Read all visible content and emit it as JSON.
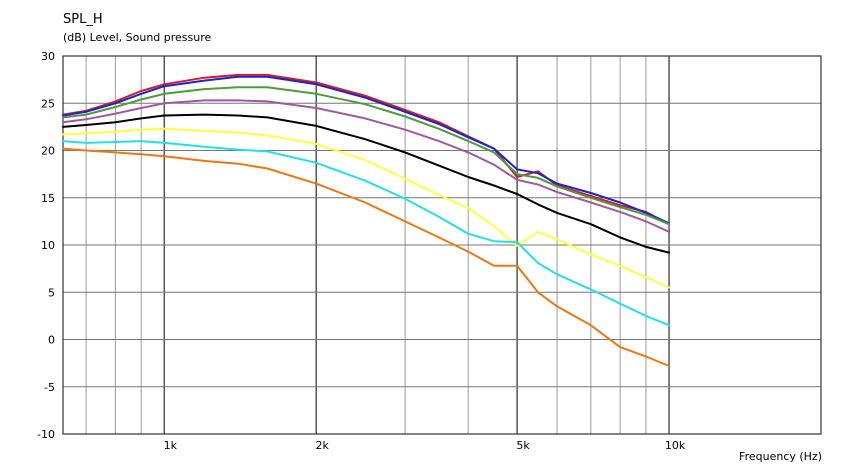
{
  "chart_data": {
    "type": "line",
    "title": "SPL_H",
    "ylabel": "(dB)  Level, Sound pressure",
    "xlabel": "Frequency  (Hz)",
    "x_scale": "log",
    "xlim": [
      630,
      20000
    ],
    "ylim": [
      -10,
      30
    ],
    "grid": true,
    "legend": "none",
    "y_ticks": [
      -10,
      -5,
      0,
      5,
      10,
      15,
      20,
      25,
      30
    ],
    "x_tick_labels": [
      {
        "value": 1000,
        "label": "1k"
      },
      {
        "value": 2000,
        "label": "2k"
      },
      {
        "value": 5000,
        "label": "5k"
      },
      {
        "value": 10000,
        "label": "10k"
      }
    ],
    "x_minor_grid": [
      700,
      800,
      900,
      3000,
      4000,
      6000,
      7000,
      8000,
      9000,
      20000
    ],
    "series": [
      {
        "color": "#cc2222",
        "points": [
          [
            630,
            23.8
          ],
          [
            700,
            24.2
          ],
          [
            800,
            25.2
          ],
          [
            900,
            26.3
          ],
          [
            1000,
            27.0
          ],
          [
            1200,
            27.7
          ],
          [
            1400,
            28.0
          ],
          [
            1600,
            28.0
          ],
          [
            2000,
            27.2
          ],
          [
            2500,
            25.8
          ],
          [
            3000,
            24.3
          ],
          [
            3500,
            23.0
          ],
          [
            4000,
            21.5
          ],
          [
            4500,
            20.2
          ],
          [
            5000,
            17.2
          ],
          [
            5500,
            17.8
          ],
          [
            6000,
            16.3
          ],
          [
            7000,
            15.2
          ],
          [
            8000,
            14.2
          ],
          [
            9000,
            13.5
          ],
          [
            10000,
            12.2
          ]
        ]
      },
      {
        "color": "#2222cc",
        "points": [
          [
            630,
            23.7
          ],
          [
            700,
            24.1
          ],
          [
            800,
            25.0
          ],
          [
            900,
            26.0
          ],
          [
            1000,
            26.8
          ],
          [
            1200,
            27.4
          ],
          [
            1400,
            27.8
          ],
          [
            1600,
            27.8
          ],
          [
            2000,
            27.0
          ],
          [
            2500,
            25.6
          ],
          [
            3000,
            24.1
          ],
          [
            3500,
            22.8
          ],
          [
            4000,
            21.4
          ],
          [
            4500,
            20.2
          ],
          [
            5000,
            18.0
          ],
          [
            5500,
            17.6
          ],
          [
            6000,
            16.5
          ],
          [
            7000,
            15.5
          ],
          [
            8000,
            14.5
          ],
          [
            9000,
            13.4
          ],
          [
            10000,
            12.3
          ]
        ]
      },
      {
        "color": "#4f9a3d",
        "points": [
          [
            630,
            23.5
          ],
          [
            700,
            23.8
          ],
          [
            800,
            24.6
          ],
          [
            900,
            25.4
          ],
          [
            1000,
            26.0
          ],
          [
            1200,
            26.5
          ],
          [
            1400,
            26.7
          ],
          [
            1600,
            26.7
          ],
          [
            2000,
            26.0
          ],
          [
            2500,
            24.9
          ],
          [
            3000,
            23.6
          ],
          [
            3500,
            22.3
          ],
          [
            4000,
            21.0
          ],
          [
            4500,
            19.8
          ],
          [
            5000,
            17.5
          ],
          [
            5500,
            17.1
          ],
          [
            6000,
            16.2
          ],
          [
            7000,
            15.0
          ],
          [
            8000,
            14.0
          ],
          [
            9000,
            13.2
          ],
          [
            10000,
            12.2
          ]
        ]
      },
      {
        "color": "#a05aa0",
        "points": [
          [
            630,
            23.0
          ],
          [
            700,
            23.3
          ],
          [
            800,
            23.9
          ],
          [
            900,
            24.5
          ],
          [
            1000,
            25.0
          ],
          [
            1200,
            25.3
          ],
          [
            1400,
            25.3
          ],
          [
            1600,
            25.2
          ],
          [
            2000,
            24.5
          ],
          [
            2500,
            23.4
          ],
          [
            3000,
            22.2
          ],
          [
            3500,
            21.0
          ],
          [
            4000,
            19.8
          ],
          [
            4500,
            18.5
          ],
          [
            5000,
            16.9
          ],
          [
            5500,
            16.4
          ],
          [
            6000,
            15.6
          ],
          [
            7000,
            14.5
          ],
          [
            8000,
            13.5
          ],
          [
            9000,
            12.5
          ],
          [
            10000,
            11.4
          ]
        ]
      },
      {
        "color": "#000000",
        "points": [
          [
            630,
            22.5
          ],
          [
            700,
            22.7
          ],
          [
            800,
            23.0
          ],
          [
            900,
            23.4
          ],
          [
            1000,
            23.7
          ],
          [
            1200,
            23.8
          ],
          [
            1400,
            23.7
          ],
          [
            1600,
            23.5
          ],
          [
            2000,
            22.6
          ],
          [
            2500,
            21.2
          ],
          [
            3000,
            19.8
          ],
          [
            3500,
            18.4
          ],
          [
            4000,
            17.2
          ],
          [
            4500,
            16.3
          ],
          [
            5000,
            15.4
          ],
          [
            5500,
            14.3
          ],
          [
            6000,
            13.4
          ],
          [
            7000,
            12.2
          ],
          [
            8000,
            10.8
          ],
          [
            9000,
            9.8
          ],
          [
            10000,
            9.2
          ]
        ]
      },
      {
        "color": "#ffff44",
        "points": [
          [
            630,
            21.7
          ],
          [
            700,
            21.8
          ],
          [
            800,
            22.0
          ],
          [
            900,
            22.2
          ],
          [
            1000,
            22.3
          ],
          [
            1200,
            22.1
          ],
          [
            1400,
            21.9
          ],
          [
            1600,
            21.6
          ],
          [
            2000,
            20.7
          ],
          [
            2500,
            19.0
          ],
          [
            3000,
            17.0
          ],
          [
            3500,
            15.3
          ],
          [
            4000,
            13.9
          ],
          [
            4500,
            12.0
          ],
          [
            5000,
            9.9
          ],
          [
            5500,
            11.4
          ],
          [
            6000,
            10.6
          ],
          [
            7000,
            9.0
          ],
          [
            8000,
            7.8
          ],
          [
            9000,
            6.6
          ],
          [
            10000,
            5.5
          ]
        ]
      },
      {
        "color": "#22e0e6",
        "points": [
          [
            630,
            21.0
          ],
          [
            700,
            20.8
          ],
          [
            800,
            20.9
          ],
          [
            900,
            21.0
          ],
          [
            1000,
            20.8
          ],
          [
            1200,
            20.4
          ],
          [
            1400,
            20.1
          ],
          [
            1600,
            19.9
          ],
          [
            2000,
            18.7
          ],
          [
            2500,
            16.8
          ],
          [
            3000,
            14.9
          ],
          [
            3500,
            13.0
          ],
          [
            4000,
            11.2
          ],
          [
            4500,
            10.4
          ],
          [
            5000,
            10.3
          ],
          [
            5500,
            8.1
          ],
          [
            6000,
            6.9
          ],
          [
            7000,
            5.3
          ],
          [
            8000,
            3.8
          ],
          [
            9000,
            2.5
          ],
          [
            10000,
            1.5
          ]
        ]
      },
      {
        "color": "#ee7711",
        "points": [
          [
            630,
            20.2
          ],
          [
            700,
            20.0
          ],
          [
            800,
            19.8
          ],
          [
            900,
            19.6
          ],
          [
            1000,
            19.4
          ],
          [
            1200,
            18.9
          ],
          [
            1400,
            18.6
          ],
          [
            1600,
            18.1
          ],
          [
            2000,
            16.5
          ],
          [
            2500,
            14.5
          ],
          [
            3000,
            12.5
          ],
          [
            3500,
            10.8
          ],
          [
            4000,
            9.3
          ],
          [
            4500,
            7.8
          ],
          [
            5000,
            7.8
          ],
          [
            5500,
            5.0
          ],
          [
            6000,
            3.5
          ],
          [
            7000,
            1.5
          ],
          [
            8000,
            -0.8
          ],
          [
            9000,
            -1.8
          ],
          [
            10000,
            -2.8
          ]
        ]
      }
    ]
  }
}
